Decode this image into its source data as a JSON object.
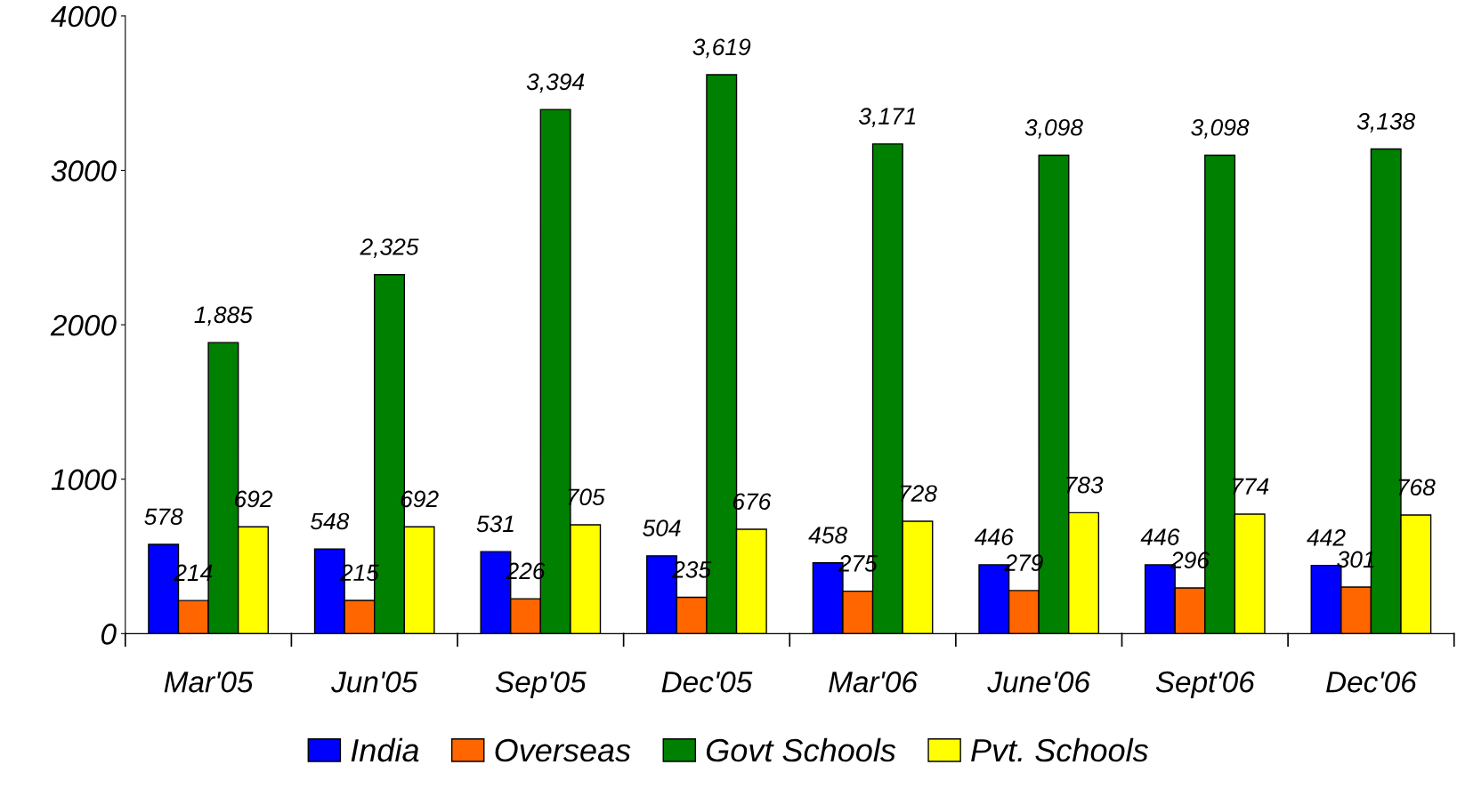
{
  "chart_data": {
    "type": "bar",
    "categories": [
      "Mar'05",
      "Jun'05",
      "Sep'05",
      "Dec'05",
      "Mar'06",
      "June'06",
      "Sept'06",
      "Dec'06"
    ],
    "series": [
      {
        "name": "India",
        "color": "#0000ff",
        "values": [
          578,
          548,
          531,
          504,
          458,
          446,
          446,
          442
        ],
        "value_labels": [
          "578",
          "548",
          "531",
          "504",
          "458",
          "446",
          "446",
          "442"
        ]
      },
      {
        "name": "Overseas",
        "color": "#ff6600",
        "values": [
          214,
          215,
          226,
          235,
          275,
          279,
          296,
          301
        ],
        "value_labels": [
          "214",
          "215",
          "226",
          "235",
          "275",
          "279",
          "296",
          "301"
        ]
      },
      {
        "name": "Govt Schools",
        "color": "#008000",
        "values": [
          1885,
          2325,
          3394,
          3619,
          3171,
          3098,
          3098,
          3138
        ],
        "value_labels": [
          "1,885",
          "2,325",
          "3,394",
          "3,619",
          "3,171",
          "3,098",
          "3,098",
          "3,138"
        ]
      },
      {
        "name": "Pvt. Schools",
        "color": "#ffff00",
        "values": [
          692,
          692,
          705,
          676,
          728,
          783,
          774,
          768
        ],
        "value_labels": [
          "692",
          "692",
          "705",
          "676",
          "728",
          "783",
          "774",
          "768"
        ]
      }
    ],
    "ylim": [
      0,
      4000
    ],
    "yticks": [
      0,
      1000,
      2000,
      3000,
      4000
    ],
    "grid": false,
    "legend": "bottom"
  }
}
